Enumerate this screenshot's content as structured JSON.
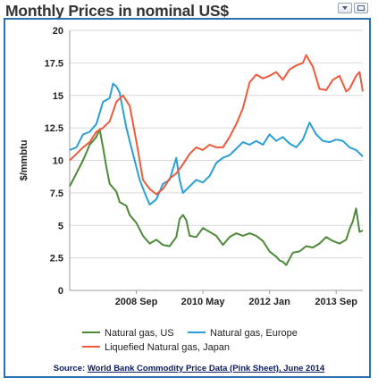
{
  "title": "Monthly Prices in nominal US$",
  "controls": {
    "collapse_icon": "chevron-down-icon",
    "maximize_icon": "window-icon"
  },
  "source": {
    "prefix": "Source:",
    "link_text": "World Bank Commodity Price Data (Pink Sheet), June 2014"
  },
  "chart_data": {
    "type": "line",
    "ylabel": "$/mmbtu",
    "xlabel": "",
    "ylim": [
      0,
      20
    ],
    "y_ticks": [
      0,
      2.5,
      5,
      7.5,
      10,
      12.5,
      15,
      17.5,
      20
    ],
    "y_tick_labels": [
      "0",
      "2.5",
      "5",
      "7.5",
      "10",
      "12.5",
      "15",
      "17.5",
      "20"
    ],
    "x_range": [
      "2007-01",
      "2014-05"
    ],
    "x_ticks": [
      "2008-09",
      "2010-05",
      "2012-01",
      "2013-09"
    ],
    "x_tick_labels": [
      "2008 Sep",
      "2010 May",
      "2012 Jan",
      "2013 Sep"
    ],
    "grid": "horizontal",
    "legend_position": "bottom",
    "series": [
      {
        "name": "Natural gas, US",
        "color": "#4e8a3a",
        "points": [
          [
            "2007-01",
            8.0
          ],
          [
            "2007-03",
            9.0
          ],
          [
            "2007-05",
            10.0
          ],
          [
            "2007-07",
            11.2
          ],
          [
            "2007-09",
            11.8
          ],
          [
            "2007-10",
            12.4
          ],
          [
            "2007-11",
            11.0
          ],
          [
            "2007-12",
            9.5
          ],
          [
            "2008-01",
            8.2
          ],
          [
            "2008-03",
            7.6
          ],
          [
            "2008-04",
            6.8
          ],
          [
            "2008-06",
            6.5
          ],
          [
            "2008-07",
            5.8
          ],
          [
            "2008-09",
            5.2
          ],
          [
            "2008-11",
            4.2
          ],
          [
            "2009-01",
            3.6
          ],
          [
            "2009-03",
            3.9
          ],
          [
            "2009-05",
            3.5
          ],
          [
            "2009-07",
            3.4
          ],
          [
            "2009-09",
            4.1
          ],
          [
            "2009-10",
            5.5
          ],
          [
            "2009-11",
            5.8
          ],
          [
            "2009-12",
            5.4
          ],
          [
            "2010-01",
            4.2
          ],
          [
            "2010-03",
            4.1
          ],
          [
            "2010-05",
            4.8
          ],
          [
            "2010-07",
            4.5
          ],
          [
            "2010-09",
            4.2
          ],
          [
            "2010-11",
            3.5
          ],
          [
            "2011-01",
            4.1
          ],
          [
            "2011-03",
            4.4
          ],
          [
            "2011-05",
            4.2
          ],
          [
            "2011-07",
            4.4
          ],
          [
            "2011-09",
            4.2
          ],
          [
            "2011-11",
            3.8
          ],
          [
            "2012-01",
            3.0
          ],
          [
            "2012-03",
            2.6
          ],
          [
            "2012-04",
            2.3
          ],
          [
            "2012-05",
            2.2
          ],
          [
            "2012-06",
            1.95
          ],
          [
            "2012-08",
            2.9
          ],
          [
            "2012-10",
            3.0
          ],
          [
            "2012-12",
            3.4
          ],
          [
            "2013-02",
            3.3
          ],
          [
            "2013-04",
            3.6
          ],
          [
            "2013-06",
            4.1
          ],
          [
            "2013-08",
            3.8
          ],
          [
            "2013-10",
            3.6
          ],
          [
            "2013-12",
            3.9
          ],
          [
            "2014-01",
            4.7
          ],
          [
            "2014-02",
            5.3
          ],
          [
            "2014-03",
            6.3
          ],
          [
            "2014-04",
            4.5
          ],
          [
            "2014-05",
            4.6
          ]
        ]
      },
      {
        "name": "Natural gas, Europe",
        "color": "#2a9fd6",
        "points": [
          [
            "2007-01",
            10.8
          ],
          [
            "2007-03",
            11.0
          ],
          [
            "2007-05",
            12.0
          ],
          [
            "2007-07",
            12.2
          ],
          [
            "2007-09",
            12.8
          ],
          [
            "2007-11",
            14.5
          ],
          [
            "2008-01",
            14.8
          ],
          [
            "2008-02",
            15.9
          ],
          [
            "2008-03",
            15.7
          ],
          [
            "2008-04",
            15.2
          ],
          [
            "2008-06",
            12.5
          ],
          [
            "2008-08",
            10.5
          ],
          [
            "2008-10",
            8.5
          ],
          [
            "2008-12",
            7.2
          ],
          [
            "2009-01",
            6.6
          ],
          [
            "2009-03",
            7.0
          ],
          [
            "2009-05",
            8.2
          ],
          [
            "2009-07",
            8.5
          ],
          [
            "2009-09",
            10.2
          ],
          [
            "2009-10",
            8.5
          ],
          [
            "2009-11",
            7.5
          ],
          [
            "2010-01",
            8.0
          ],
          [
            "2010-03",
            8.5
          ],
          [
            "2010-05",
            8.3
          ],
          [
            "2010-07",
            8.8
          ],
          [
            "2010-09",
            9.8
          ],
          [
            "2010-11",
            10.2
          ],
          [
            "2011-01",
            10.4
          ],
          [
            "2011-03",
            10.9
          ],
          [
            "2011-05",
            11.4
          ],
          [
            "2011-07",
            11.2
          ],
          [
            "2011-09",
            11.5
          ],
          [
            "2011-11",
            11.2
          ],
          [
            "2012-01",
            12.0
          ],
          [
            "2012-03",
            11.5
          ],
          [
            "2012-05",
            11.8
          ],
          [
            "2012-07",
            11.3
          ],
          [
            "2012-09",
            11.0
          ],
          [
            "2012-11",
            11.6
          ],
          [
            "2013-01",
            12.9
          ],
          [
            "2013-03",
            12.0
          ],
          [
            "2013-05",
            11.5
          ],
          [
            "2013-07",
            11.4
          ],
          [
            "2013-09",
            11.6
          ],
          [
            "2013-11",
            11.5
          ],
          [
            "2014-01",
            11.0
          ],
          [
            "2014-03",
            10.8
          ],
          [
            "2014-05",
            10.3
          ]
        ]
      },
      {
        "name": "Liquefied Natural gas, Japan",
        "color": "#f05a3c",
        "points": [
          [
            "2007-01",
            10.0
          ],
          [
            "2007-03",
            10.5
          ],
          [
            "2007-05",
            11.0
          ],
          [
            "2007-07",
            11.4
          ],
          [
            "2007-09",
            12.2
          ],
          [
            "2007-11",
            12.5
          ],
          [
            "2008-01",
            13.0
          ],
          [
            "2008-03",
            14.5
          ],
          [
            "2008-05",
            15.0
          ],
          [
            "2008-07",
            14.2
          ],
          [
            "2008-09",
            11.5
          ],
          [
            "2008-11",
            8.5
          ],
          [
            "2009-01",
            7.8
          ],
          [
            "2009-03",
            7.4
          ],
          [
            "2009-05",
            7.8
          ],
          [
            "2009-07",
            8.6
          ],
          [
            "2009-09",
            9.0
          ],
          [
            "2009-11",
            9.7
          ],
          [
            "2010-01",
            10.5
          ],
          [
            "2010-03",
            11.0
          ],
          [
            "2010-05",
            10.8
          ],
          [
            "2010-07",
            11.2
          ],
          [
            "2010-09",
            11.0
          ],
          [
            "2010-11",
            11.0
          ],
          [
            "2011-01",
            11.8
          ],
          [
            "2011-03",
            12.8
          ],
          [
            "2011-05",
            14.0
          ],
          [
            "2011-07",
            16.0
          ],
          [
            "2011-09",
            16.6
          ],
          [
            "2011-11",
            16.3
          ],
          [
            "2012-01",
            16.5
          ],
          [
            "2012-03",
            16.8
          ],
          [
            "2012-05",
            16.2
          ],
          [
            "2012-07",
            17.0
          ],
          [
            "2012-09",
            17.3
          ],
          [
            "2012-11",
            17.5
          ],
          [
            "2012-12",
            18.1
          ],
          [
            "2013-02",
            17.2
          ],
          [
            "2013-04",
            15.5
          ],
          [
            "2013-06",
            15.4
          ],
          [
            "2013-08",
            16.2
          ],
          [
            "2013-10",
            16.5
          ],
          [
            "2013-12",
            15.3
          ],
          [
            "2014-01",
            15.5
          ],
          [
            "2014-03",
            16.5
          ],
          [
            "2014-04",
            16.8
          ],
          [
            "2014-05",
            15.3
          ]
        ]
      }
    ]
  }
}
